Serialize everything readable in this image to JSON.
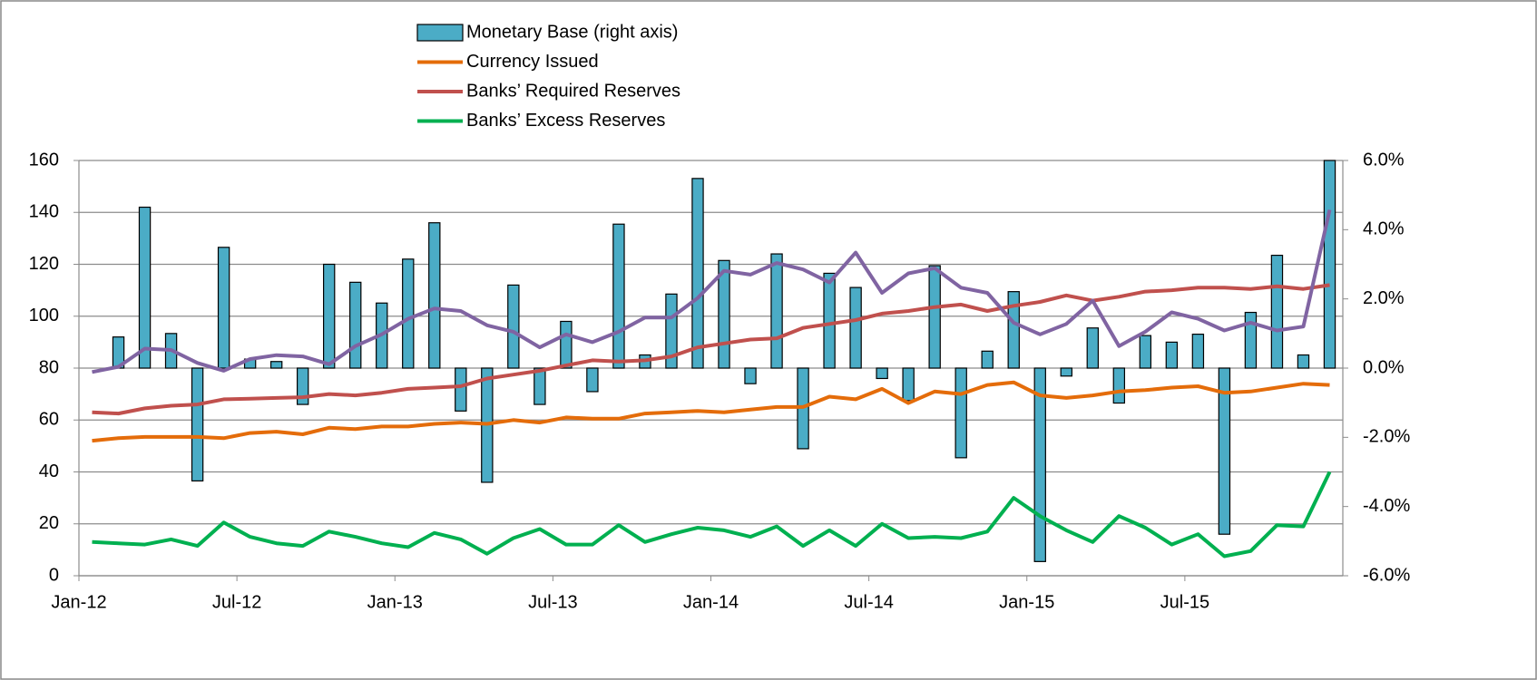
{
  "chart_data": {
    "type": "bar-line",
    "categories": [
      "Jan-12",
      null,
      null,
      null,
      null,
      null,
      "Jul-12",
      null,
      null,
      null,
      null,
      null,
      "Jan-13",
      null,
      null,
      null,
      null,
      null,
      "Jul-13",
      null,
      null,
      null,
      null,
      null,
      "Jan-14",
      null,
      null,
      null,
      null,
      null,
      "Jul-14",
      null,
      null,
      null,
      null,
      null,
      "Jan-15",
      null,
      null,
      null,
      null,
      null,
      "Jul-15",
      null,
      null,
      null,
      null,
      null
    ],
    "ylim": [
      0,
      160
    ],
    "yticks": [
      0,
      20,
      40,
      60,
      80,
      100,
      120,
      140,
      160
    ],
    "y2lim": [
      -6,
      6
    ],
    "y2ticks": [
      {
        "value": -6,
        "label": "-6.0%"
      },
      {
        "value": -4,
        "label": "-4.0%"
      },
      {
        "value": -2,
        "label": "-2.0%"
      },
      {
        "value": 0,
        "label": "0.0%"
      },
      {
        "value": 2,
        "label": "2.0%"
      },
      {
        "value": 4,
        "label": "4.0%"
      },
      {
        "value": 6,
        "label": "6.0%"
      }
    ],
    "grid": true,
    "legend": "top",
    "series": [
      {
        "name": "Monetary Base (right axis)",
        "type": "bar",
        "axis": "y2",
        "color": "#4bacc6",
        "values": [
          0,
          0.9,
          4.65,
          1.0,
          -3.26,
          3.49,
          0.26,
          0.19,
          -1.05,
          3.0,
          2.48,
          1.88,
          3.15,
          4.2,
          -1.24,
          -3.3,
          2.4,
          -1.05,
          1.35,
          -0.68,
          4.16,
          0.38,
          2.14,
          5.48,
          3.11,
          -0.45,
          3.3,
          -2.33,
          2.74,
          2.33,
          -0.3,
          -0.94,
          2.96,
          -2.59,
          0.49,
          2.21,
          -5.59,
          -0.23,
          1.16,
          -1.01,
          0.94,
          0.75,
          0.98,
          -4.8,
          1.61,
          3.26,
          0.38,
          6.0
        ]
      },
      {
        "name": "Currency Issued",
        "type": "line",
        "color": "#e46c0a",
        "values": [
          52,
          53,
          53.5,
          53.5,
          53.5,
          53,
          55,
          55.5,
          54.5,
          57,
          56.5,
          57.5,
          57.5,
          58.5,
          59,
          58.5,
          60,
          59,
          61,
          60.5,
          60.5,
          62.5,
          63,
          63.5,
          63,
          64,
          65,
          65,
          69,
          68,
          72,
          66.5,
          71,
          70,
          73.5,
          74.5,
          69.5,
          68.5,
          69.5,
          71,
          71.5,
          72.5,
          73,
          70.5,
          71,
          72.5,
          74,
          73.5
        ]
      },
      {
        "name": "Banks’ Required Reserves",
        "type": "line",
        "color": "#c0504d",
        "values": [
          63,
          62.5,
          64.5,
          65.5,
          66,
          68,
          68.2,
          68.5,
          68.8,
          70,
          69.5,
          70.5,
          72,
          72.5,
          73,
          76,
          77.5,
          79,
          81,
          83,
          82.5,
          83,
          84.5,
          88,
          89.5,
          91,
          91.5,
          95.5,
          97,
          98.5,
          101,
          102,
          103.5,
          104.5,
          102,
          104,
          105.5,
          108,
          106,
          107.5,
          109.5,
          110,
          111,
          111,
          110.5,
          111.5,
          110.5,
          112
        ]
      },
      {
        "name": "Banks’ Excess Reserves",
        "type": "line",
        "color": "#00b050",
        "values": [
          13,
          12.5,
          12,
          14,
          11.5,
          20.5,
          15,
          12.5,
          11.5,
          17,
          15,
          12.5,
          11,
          16.5,
          14,
          8.5,
          14.5,
          18,
          12,
          12,
          19.5,
          13,
          16,
          18.5,
          17.5,
          15,
          19,
          11.5,
          17.5,
          11.5,
          20,
          14.5,
          15,
          14.5,
          17,
          30,
          23,
          17.5,
          13,
          23,
          18.5,
          12,
          16,
          7.5,
          9.5,
          19.5,
          19,
          40
        ]
      },
      {
        "type": "line",
        "color": "#8064a2",
        "values": [
          78.5,
          80.5,
          87.5,
          87,
          82,
          79,
          83.5,
          85,
          84.5,
          81.5,
          88.5,
          93,
          99,
          103,
          102,
          96.5,
          94,
          88,
          93,
          90,
          94,
          99.5,
          99.5,
          107,
          117.5,
          116,
          120.5,
          118,
          113,
          124.5,
          109,
          116.5,
          118.5,
          111,
          109,
          97.5,
          93,
          97,
          106,
          88.5,
          94,
          101.5,
          99,
          94.5,
          97.5,
          94.5,
          96,
          141
        ]
      }
    ]
  }
}
